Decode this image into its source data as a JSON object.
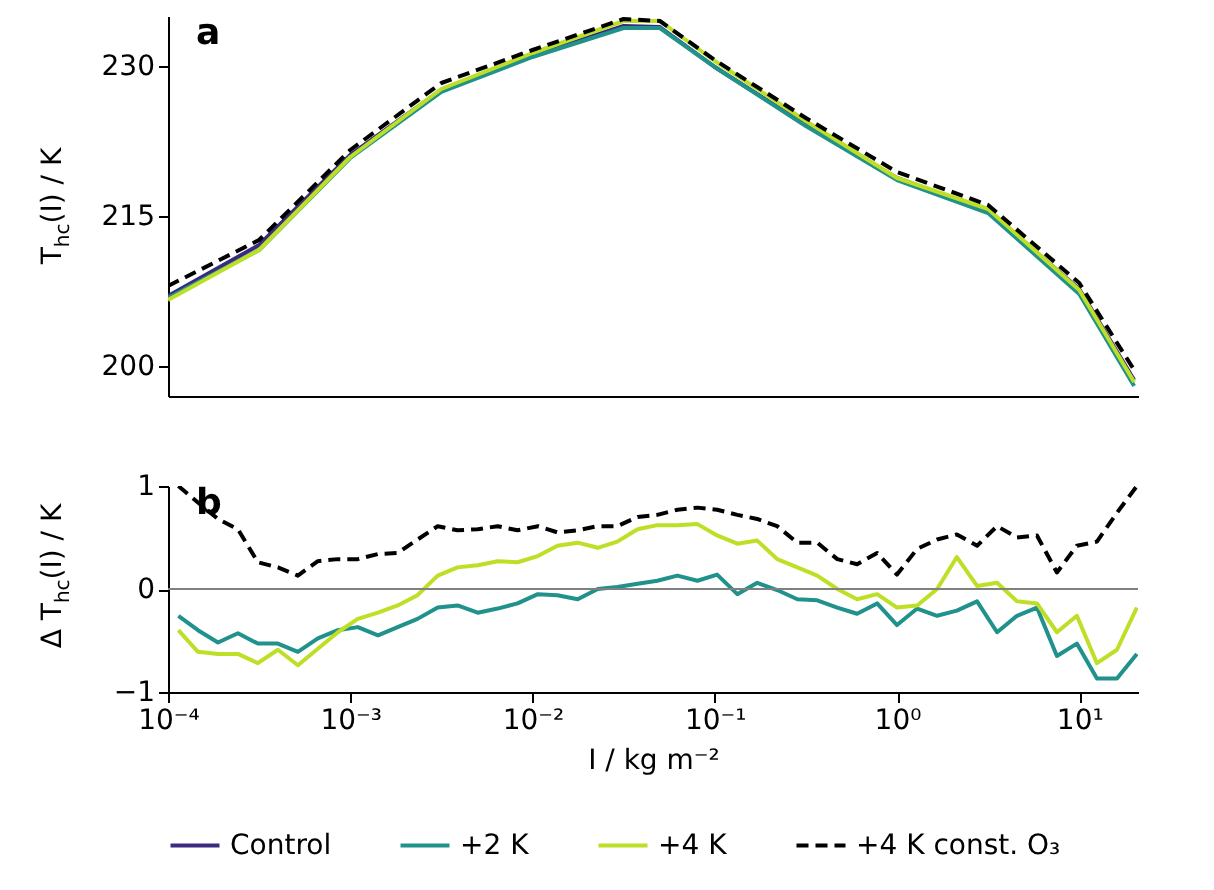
{
  "chart_data": [
    {
      "type": "line",
      "ylabel": "T$_{hc}$(I) / K",
      "annotations": [
        "a"
      ],
      "log": "x",
      "xlim": [
        0.0001,
        21
      ],
      "xticks": [
        {
          "value": 0.0001,
          "label": null
        },
        {
          "value": 0.001,
          "label": null
        },
        {
          "value": 0.01,
          "label": null
        },
        {
          "value": 0.1,
          "label": null
        },
        {
          "value": 1,
          "label": null
        },
        {
          "value": 10,
          "label": null
        }
      ],
      "ylim": [
        197,
        235
      ],
      "yticks": [
        200,
        215,
        230
      ],
      "tick_labels": "y",
      "grid": false,
      "legend": "bottom",
      "x": [
        0.0001,
        0.000316,
        0.001,
        0.00316,
        0.01,
        0.0316,
        0.05,
        0.1,
        0.316,
        1,
        3.16,
        10,
        20
      ],
      "series": [
        {
          "name": "Control",
          "color": "#3b2a80",
          "line_style": "solid",
          "values": [
            207,
            212.1,
            221.1,
            227.6,
            231,
            234,
            233.9,
            229.9,
            224.1,
            218.8,
            215.5,
            207.7,
            198.6
          ]
        },
        {
          "name": "+2 K",
          "color": "#21918c",
          "line_style": "solid",
          "values": [
            206.8,
            211.6,
            220.8,
            227.4,
            230.9,
            233.8,
            233.8,
            229.9,
            224.0,
            218.6,
            215.3,
            207.2,
            198.0
          ]
        },
        {
          "name": "+4 K",
          "color": "#bddf26",
          "line_style": "solid",
          "values": [
            206.6,
            211.6,
            220.9,
            227.7,
            231.3,
            234.5,
            234.5,
            230.5,
            224.5,
            218.8,
            215.7,
            207.6,
            198.4
          ]
        },
        {
          "name": "+4 K const. O₃",
          "color": "#000000",
          "line_style": "dashed",
          "values": [
            208,
            212.6,
            221.6,
            228.3,
            231.6,
            234.7,
            234.5,
            230.6,
            224.8,
            219.4,
            216.1,
            208.3,
            199.6
          ]
        }
      ]
    },
    {
      "type": "line",
      "xlabel": "I / kg m⁻²",
      "ylabel": "Δ T$_{hc}$(I) / K",
      "annotations": [
        "b"
      ],
      "log": "x",
      "xlim": [
        0.0001,
        21
      ],
      "xticks": [
        {
          "value": 0.0001,
          "label": "10⁻⁴"
        },
        {
          "value": 0.001,
          "label": "10⁻³"
        },
        {
          "value": 0.01,
          "label": "10⁻²"
        },
        {
          "value": 0.1,
          "label": "10⁻¹"
        },
        {
          "value": 1,
          "label": "10⁰"
        },
        {
          "value": 10,
          "label": "10¹"
        }
      ],
      "ylim": [
        -1,
        1
      ],
      "yticks": [
        {
          "value": -1,
          "label": "−1"
        },
        0,
        1
      ],
      "grid": false,
      "legend": "bottom",
      "ref_lines": [
        {
          "axis": "y",
          "value": 0,
          "color": "#808080"
        }
      ],
      "x": [
        0.000114,
        0.000146,
        0.000188,
        0.000242,
        0.000311,
        0.000401,
        0.000516,
        0.000664,
        0.000855,
        0.0011,
        0.00142,
        0.00182,
        0.00234,
        0.00302,
        0.00388,
        0.005,
        0.00644,
        0.00828,
        0.0107,
        0.0137,
        0.0177,
        0.0228,
        0.0292,
        0.0377,
        0.0484,
        0.0624,
        0.0804,
        0.103,
        0.133,
        0.171,
        0.22,
        0.284,
        0.365,
        0.47,
        0.604,
        0.778,
        1.0,
        1.29,
        1.66,
        2.13,
        2.75,
        3.54,
        4.55,
        5.86,
        7.54,
        9.7,
        12.5,
        16.1,
        20.7
      ],
      "series": [
        {
          "name": "+2 K",
          "color": "#21918c",
          "line_style": "solid",
          "values": [
            -0.26,
            -0.4,
            -0.52,
            -0.43,
            -0.53,
            -0.53,
            -0.61,
            -0.48,
            -0.4,
            -0.37,
            -0.45,
            -0.37,
            -0.29,
            -0.18,
            -0.16,
            -0.23,
            -0.19,
            -0.14,
            -0.05,
            -0.06,
            -0.1,
            0,
            0.02,
            0.05,
            0.08,
            0.13,
            0.08,
            0.14,
            -0.05,
            0.06,
            -0.01,
            -0.1,
            -0.11,
            -0.18,
            -0.24,
            -0.14,
            -0.35,
            -0.19,
            -0.26,
            -0.21,
            -0.12,
            -0.42,
            -0.26,
            -0.18,
            -0.65,
            -0.53,
            -0.87,
            -0.87,
            -0.63
          ]
        },
        {
          "name": "+4 K",
          "color": "#bddf26",
          "line_style": "solid",
          "values": [
            -0.4,
            -0.61,
            -0.63,
            -0.63,
            -0.72,
            -0.59,
            -0.74,
            -0.58,
            -0.42,
            -0.29,
            -0.23,
            -0.16,
            -0.06,
            0.13,
            0.21,
            0.23,
            0.27,
            0.26,
            0.32,
            0.42,
            0.45,
            0.4,
            0.46,
            0.58,
            0.62,
            0.62,
            0.63,
            0.52,
            0.44,
            0.47,
            0.29,
            0.21,
            0.13,
            0,
            -0.1,
            -0.05,
            -0.18,
            -0.16,
            0,
            0.31,
            0.03,
            0.06,
            -0.12,
            -0.14,
            -0.42,
            -0.26,
            -0.72,
            -0.59,
            -0.18
          ]
        },
        {
          "name": "+4 K const. O₃",
          "color": "#000000",
          "line_style": "dashed",
          "values": [
            1.0,
            0.84,
            0.68,
            0.58,
            0.26,
            0.21,
            0.13,
            0.27,
            0.29,
            0.29,
            0.34,
            0.35,
            0.48,
            0.61,
            0.57,
            0.58,
            0.61,
            0.57,
            0.61,
            0.55,
            0.57,
            0.61,
            0.61,
            0.7,
            0.72,
            0.77,
            0.79,
            0.77,
            0.72,
            0.68,
            0.61,
            0.45,
            0.45,
            0.29,
            0.24,
            0.35,
            0.14,
            0.39,
            0.48,
            0.53,
            0.42,
            0.61,
            0.5,
            0.52,
            0.16,
            0.42,
            0.46,
            0.74,
            1.0
          ]
        }
      ]
    }
  ]
}
